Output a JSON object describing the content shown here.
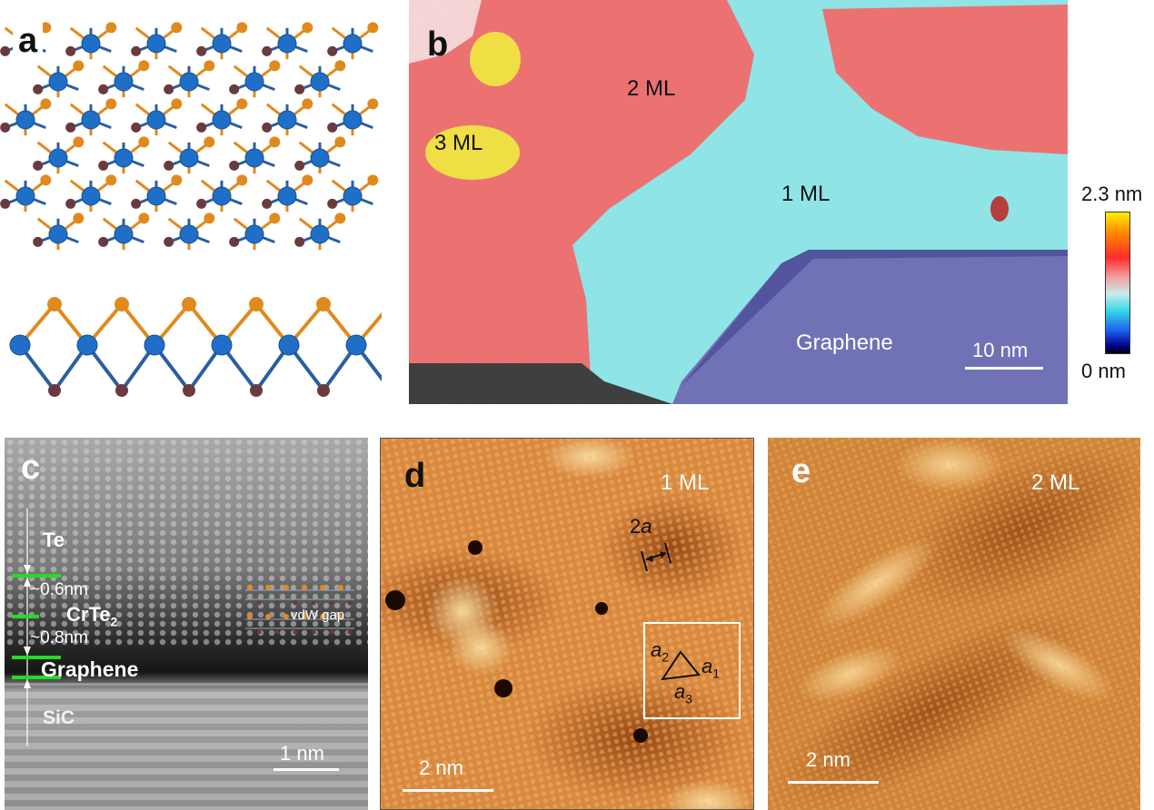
{
  "panels": {
    "a": {
      "label": "a"
    },
    "b": {
      "label": "b",
      "regions": {
        "two_ml": "2 ML",
        "three_ml": "3 ML",
        "one_ml": "1 ML",
        "graphene": "Graphene"
      },
      "scalebar": "10 nm",
      "colorbar": {
        "max": "2.3 nm",
        "min": "0 nm"
      }
    },
    "c": {
      "label": "c",
      "layers": {
        "te": "Te",
        "crte2": "CrTe",
        "crte2_sub": "2",
        "graphene": "Graphene",
        "sic": "SiC"
      },
      "spacings": {
        "top": "~0.6nm",
        "bottom": "~0.8nm"
      },
      "vdw_gap": "vdW gap",
      "scalebar": "1 nm"
    },
    "d": {
      "label": "d",
      "coverage": "1 ML",
      "lattice": {
        "period": "2",
        "period_symbol": "a",
        "a1": "a",
        "a1_sub": "1",
        "a2": "a",
        "a2_sub": "2",
        "a3": "a",
        "a3_sub": "3"
      },
      "scalebar": "2 nm"
    },
    "e": {
      "label": "e",
      "coverage": "2 ML",
      "scalebar": "2 nm"
    }
  },
  "colors": {
    "cr_atom": "#1f6fc8",
    "te_upper": "#e08a1e",
    "te_lower": "#6a3a3e",
    "ml1": "#8ee6e8",
    "ml2": "#ee6f6f",
    "ml3": "#f2e040",
    "graphene": "#6d6fb5",
    "stm_orange": "#d9893e",
    "highlight_green": "#22dd22"
  }
}
